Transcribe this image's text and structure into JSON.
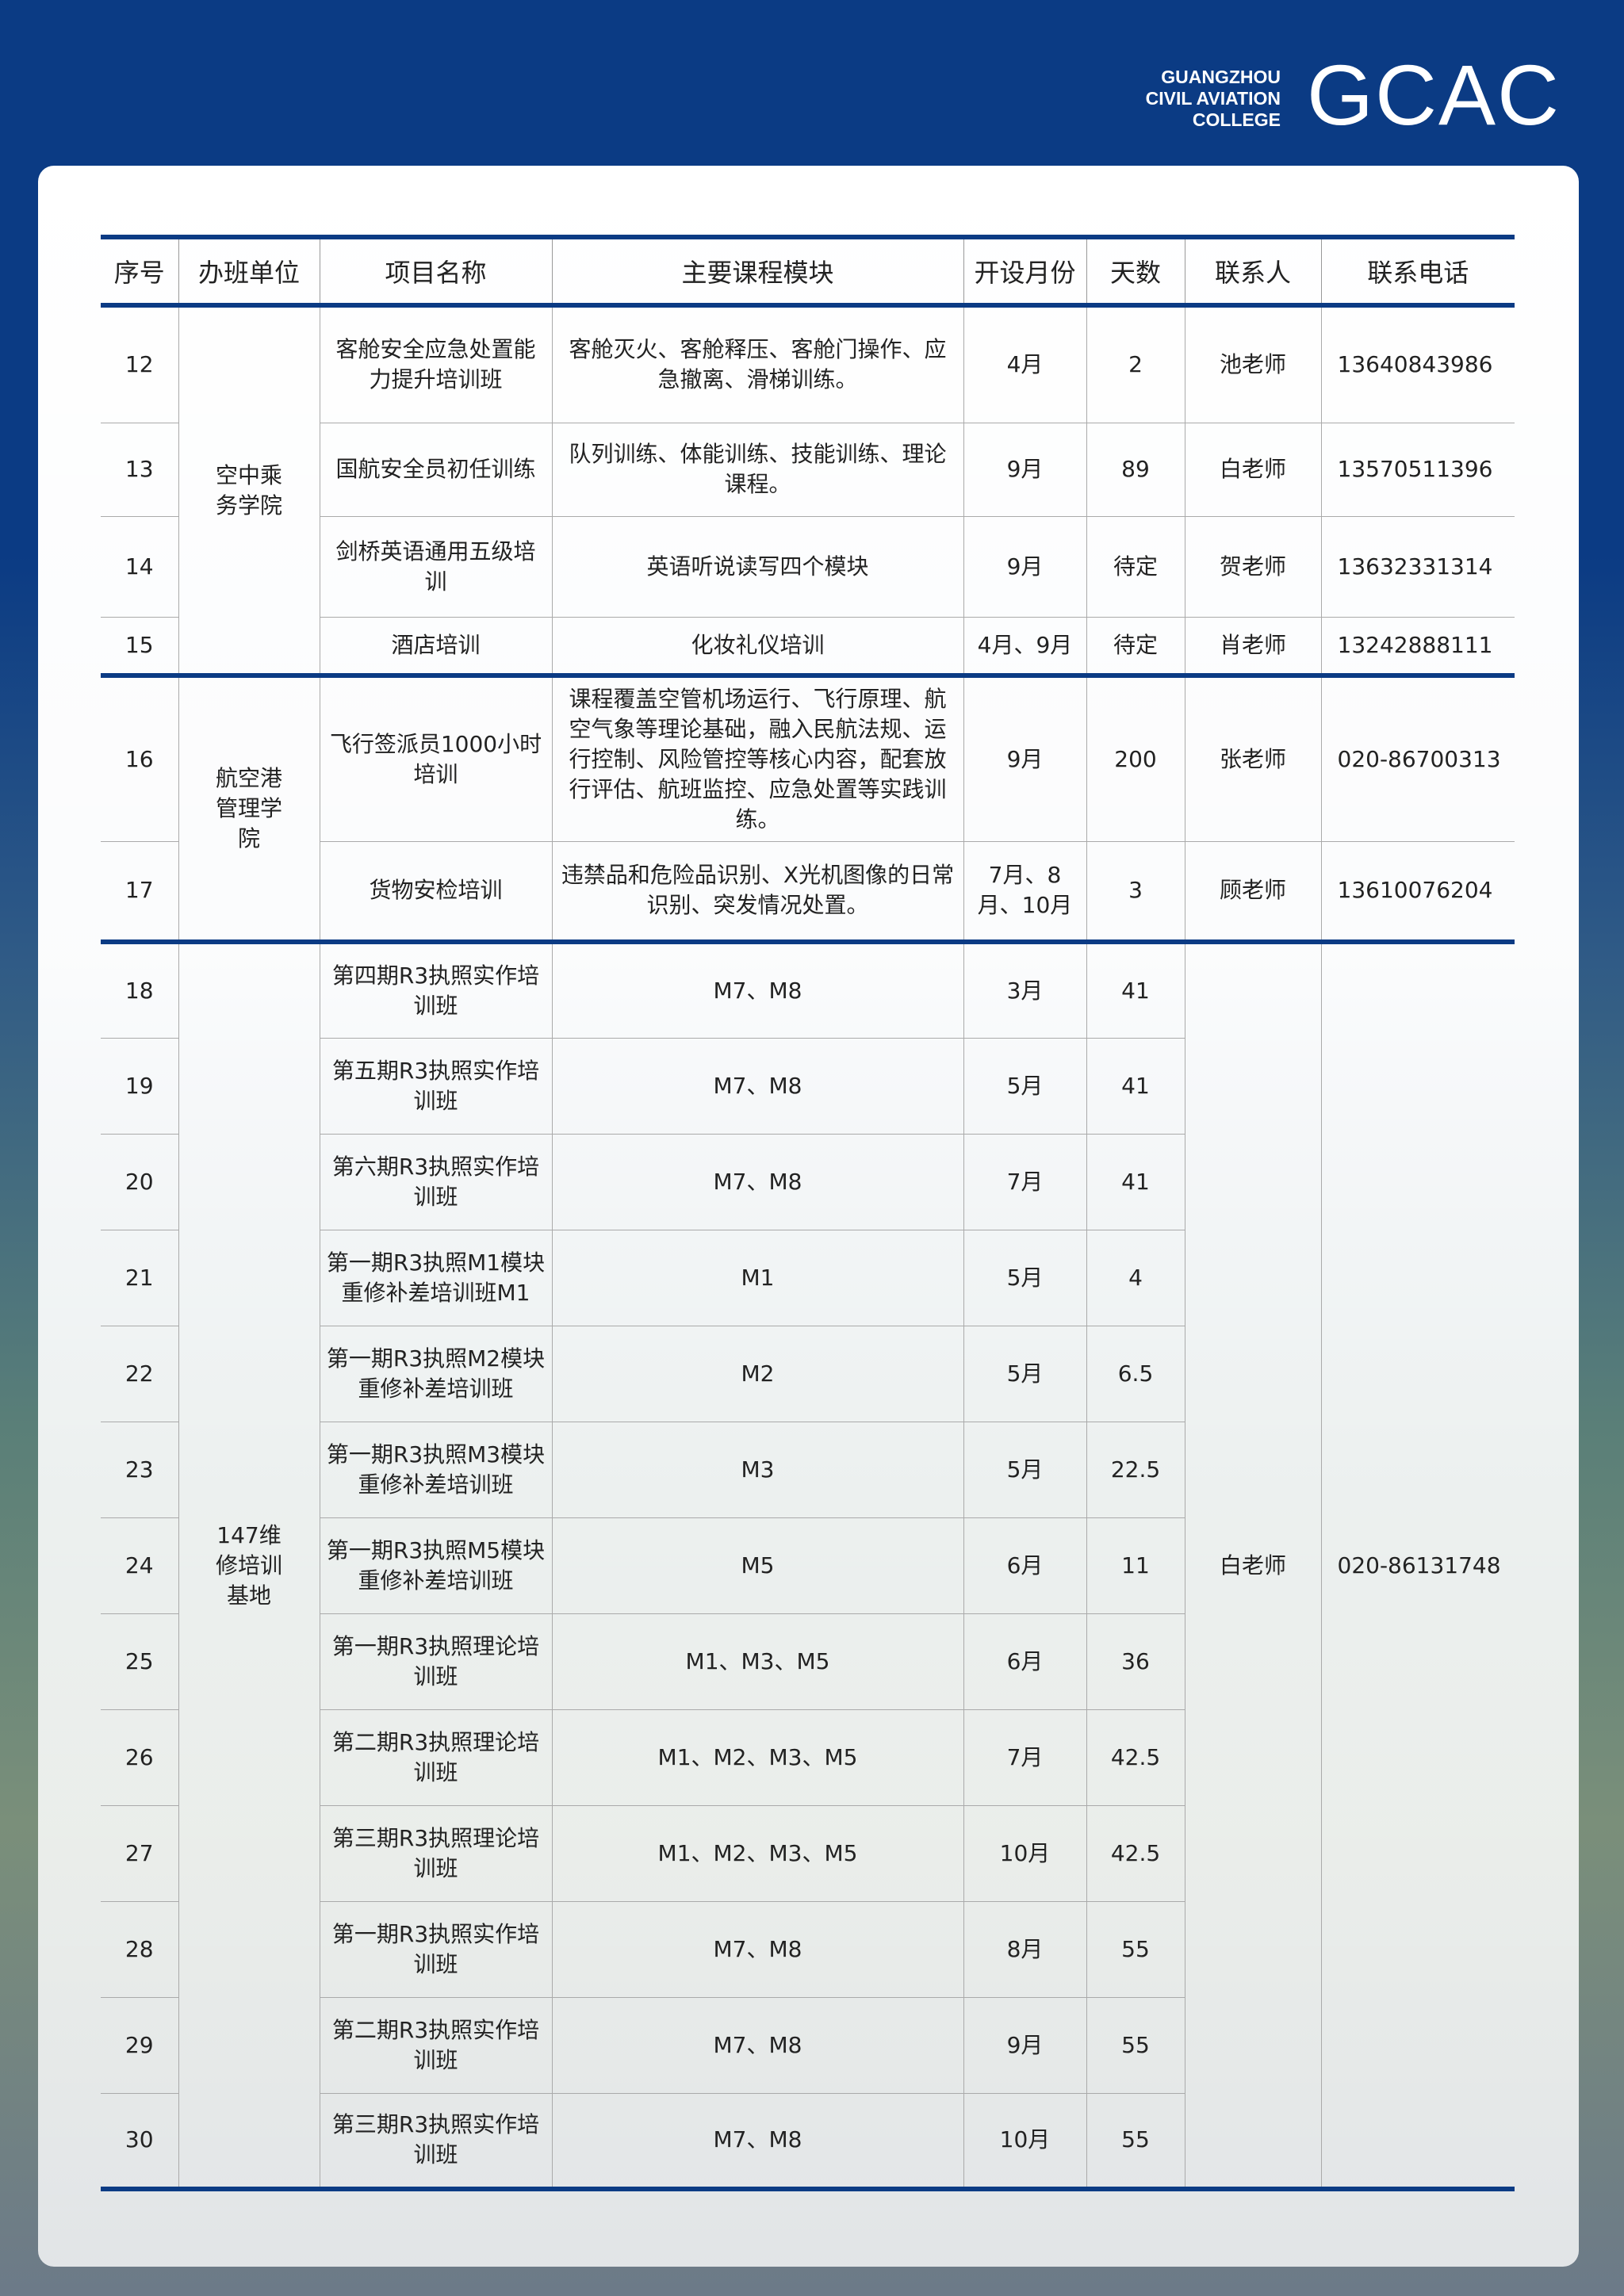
{
  "logo": {
    "line1": "GUANGZHOU",
    "line2": "CIVIL AVIATION",
    "line3": "COLLEGE",
    "mark": "GCAC"
  },
  "colors": {
    "brand_blue": "#0b3b84"
  },
  "table": {
    "headers": [
      "序号",
      "办班单位",
      "项目名称",
      "主要课程模块",
      "开设月份",
      "天数",
      "联系人",
      "联系电话"
    ],
    "groups": [
      {
        "unit": "空中乘务学院",
        "rows": [
          {
            "no": "12",
            "name": "客舱安全应急处置能力提升培训班",
            "modules": "客舱灭火、客舱释压、客舱门操作、应急撤离、滑梯训练。",
            "month": "4月",
            "days": "2",
            "contact": "池老师",
            "phone": "13640843986"
          },
          {
            "no": "13",
            "name": "国航安全员初任训练",
            "modules": "队列训练、体能训练、技能训练、理论课程。",
            "month": "9月",
            "days": "89",
            "contact": "白老师",
            "phone": "13570511396"
          },
          {
            "no": "14",
            "name": "剑桥英语通用五级培训",
            "modules": "英语听说读写四个模块",
            "month": "9月",
            "days": "待定",
            "contact": "贺老师",
            "phone": "13632331314"
          },
          {
            "no": "15",
            "name": "酒店培训",
            "modules": "化妆礼仪培训",
            "month": "4月、9月",
            "days": "待定",
            "contact": "肖老师",
            "phone": "13242888111"
          }
        ]
      },
      {
        "unit": "航空港管理学院",
        "rows": [
          {
            "no": "16",
            "name": "飞行签派员1000小时培训",
            "modules": "课程覆盖空管机场运行、飞行原理、航空气象等理论基础，融入民航法规、运行控制、风险管控等核心内容，配套放行评估、航班监控、应急处置等实践训练。",
            "month": "9月",
            "days": "200",
            "contact": "张老师",
            "phone": "020-86700313"
          },
          {
            "no": "17",
            "name": "货物安检培训",
            "modules": "违禁品和危险品识别、X光机图像的日常识别、突发情况处置。",
            "month": "7月、8月、10月",
            "days": "3",
            "contact": "顾老师",
            "phone": "13610076204"
          }
        ]
      },
      {
        "unit": "147维修培训基地",
        "contact": "白老师",
        "phone": "020-86131748",
        "rows": [
          {
            "no": "18",
            "name": "第四期R3执照实作培训班",
            "modules": "M7、M8",
            "month": "3月",
            "days": "41"
          },
          {
            "no": "19",
            "name": "第五期R3执照实作培训班",
            "modules": "M7、M8",
            "month": "5月",
            "days": "41"
          },
          {
            "no": "20",
            "name": "第六期R3执照实作培训班",
            "modules": "M7、M8",
            "month": "7月",
            "days": "41"
          },
          {
            "no": "21",
            "name": "第一期R3执照M1模块重修补差培训班M1",
            "modules": "M1",
            "month": "5月",
            "days": "4"
          },
          {
            "no": "22",
            "name": "第一期R3执照M2模块重修补差培训班",
            "modules": "M2",
            "month": "5月",
            "days": "6.5"
          },
          {
            "no": "23",
            "name": "第一期R3执照M3模块重修补差培训班",
            "modules": "M3",
            "month": "5月",
            "days": "22.5"
          },
          {
            "no": "24",
            "name": "第一期R3执照M5模块重修补差培训班",
            "modules": "M5",
            "month": "6月",
            "days": "11"
          },
          {
            "no": "25",
            "name": "第一期R3执照理论培训班",
            "modules": "M1、M3、M5",
            "month": "6月",
            "days": "36"
          },
          {
            "no": "26",
            "name": "第二期R3执照理论培训班",
            "modules": "M1、M2、M3、M5",
            "month": "7月",
            "days": "42.5"
          },
          {
            "no": "27",
            "name": "第三期R3执照理论培训班",
            "modules": "M1、M2、M3、M5",
            "month": "10月",
            "days": "42.5"
          },
          {
            "no": "28",
            "name": "第一期R3执照实作培训班",
            "modules": "M7、M8",
            "month": "8月",
            "days": "55"
          },
          {
            "no": "29",
            "name": "第二期R3执照实作培训班",
            "modules": "M7、M8",
            "month": "9月",
            "days": "55"
          },
          {
            "no": "30",
            "name": "第三期R3执照实作培训班",
            "modules": "M7、M8",
            "month": "10月",
            "days": "55"
          }
        ]
      }
    ]
  }
}
